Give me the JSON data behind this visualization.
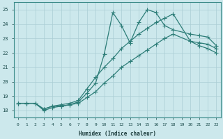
{
  "title": "",
  "xlabel": "Humidex (Indice chaleur)",
  "ylabel": "",
  "background_color": "#cce8ec",
  "line_color": "#2d7d78",
  "grid_color": "#aacdd4",
  "xlim": [
    -0.5,
    23.5
  ],
  "ylim": [
    17.5,
    25.5
  ],
  "xticks": [
    0,
    1,
    2,
    3,
    4,
    5,
    6,
    7,
    8,
    9,
    10,
    11,
    12,
    13,
    14,
    15,
    16,
    17,
    18,
    19,
    20,
    21,
    22,
    23
  ],
  "yticks": [
    18,
    19,
    20,
    21,
    22,
    23,
    24,
    25
  ],
  "line1_x": [
    0,
    1,
    2,
    3,
    4,
    5,
    6,
    7,
    8,
    9,
    10,
    11,
    12,
    13,
    14,
    15,
    16,
    17,
    18,
    20,
    21,
    22,
    23
  ],
  "line1_y": [
    18.5,
    18.5,
    18.5,
    18.1,
    18.3,
    18.3,
    18.4,
    18.6,
    19.2,
    19.9,
    21.9,
    24.8,
    23.9,
    22.7,
    24.1,
    25.0,
    24.8,
    23.9,
    23.6,
    23.3,
    23.2,
    23.1,
    22.5
  ],
  "line2_x": [
    0,
    1,
    2,
    3,
    4,
    5,
    6,
    7,
    8,
    9,
    10,
    11,
    12,
    13,
    14,
    15,
    16,
    17,
    18,
    20,
    21,
    22,
    23
  ],
  "line2_y": [
    18.5,
    18.5,
    18.5,
    18.1,
    18.3,
    18.4,
    18.5,
    18.7,
    19.5,
    20.3,
    21.0,
    21.6,
    22.3,
    22.8,
    23.3,
    23.7,
    24.1,
    24.4,
    24.7,
    22.8,
    22.7,
    22.6,
    22.3
  ],
  "line3_x": [
    0,
    1,
    2,
    3,
    4,
    5,
    6,
    7,
    8,
    9,
    10,
    11,
    12,
    13,
    14,
    15,
    16,
    17,
    18,
    20,
    21,
    22,
    23
  ],
  "line3_y": [
    18.5,
    18.5,
    18.5,
    18.0,
    18.2,
    18.3,
    18.4,
    18.5,
    18.9,
    19.3,
    19.9,
    20.4,
    21.0,
    21.4,
    21.8,
    22.2,
    22.6,
    23.0,
    23.3,
    22.8,
    22.5,
    22.3,
    22.0
  ]
}
